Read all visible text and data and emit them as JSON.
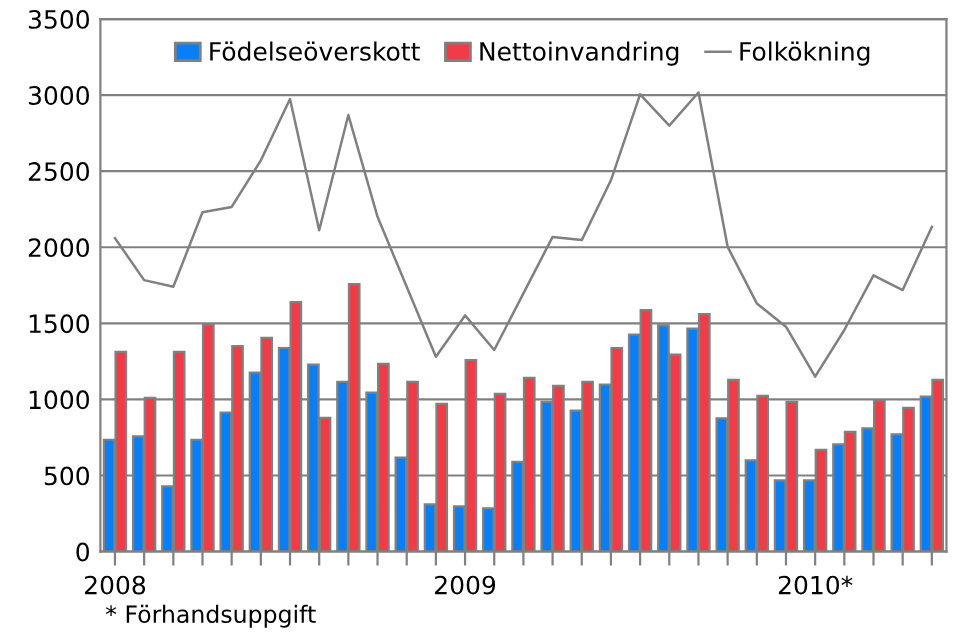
{
  "chart_data": {
    "type": "bar",
    "categories": [
      "2008",
      null,
      null,
      null,
      null,
      null,
      null,
      null,
      null,
      null,
      null,
      null,
      "2009",
      null,
      null,
      null,
      null,
      null,
      null,
      null,
      null,
      null,
      null,
      null,
      "2010*",
      null,
      null,
      null,
      null
    ],
    "series": [
      {
        "name": "Födelseöverskott",
        "color": "#0a7ff5",
        "values": [
          735,
          757,
          429,
          735,
          914,
          1176,
          1338,
          1229,
          1115,
          1045,
          617,
          310,
          297,
          284,
          590,
          984,
          927,
          1098,
          1426,
          1487,
          1465,
          875,
          599,
          468,
          468,
          704,
          809,
          770,
          1019
        ]
      },
      {
        "name": "Nettoinvandring",
        "color": "#f03c46",
        "values": [
          1312,
          1010,
          1312,
          1491,
          1351,
          1404,
          1640,
          879,
          1758,
          1233,
          1115,
          971,
          1259,
          1036,
          1141,
          1089,
          1115,
          1338,
          1587,
          1294,
          1561,
          1128,
          1023,
          984,
          669,
          787,
          993,
          945,
          1128
        ]
      },
      {
        "name": "Folkökning",
        "type": "line",
        "color": "#808080",
        "values": [
          2060,
          1784,
          1740,
          2230,
          2265,
          2571,
          2974,
          2112,
          2869,
          2200,
          1740,
          1281,
          1552,
          1325,
          1697,
          2068,
          2047,
          2440,
          3005,
          2799,
          3017,
          2003,
          1631,
          1478,
          1150,
          1456,
          1815,
          1719,
          2134
        ]
      }
    ],
    "ylim": [
      0,
      3500
    ],
    "yticks": [
      0,
      500,
      1000,
      1500,
      2000,
      2500,
      3000,
      3500
    ],
    "grid": "y",
    "legend": "top",
    "annotations": [
      "* Förhandsuppgift"
    ]
  }
}
